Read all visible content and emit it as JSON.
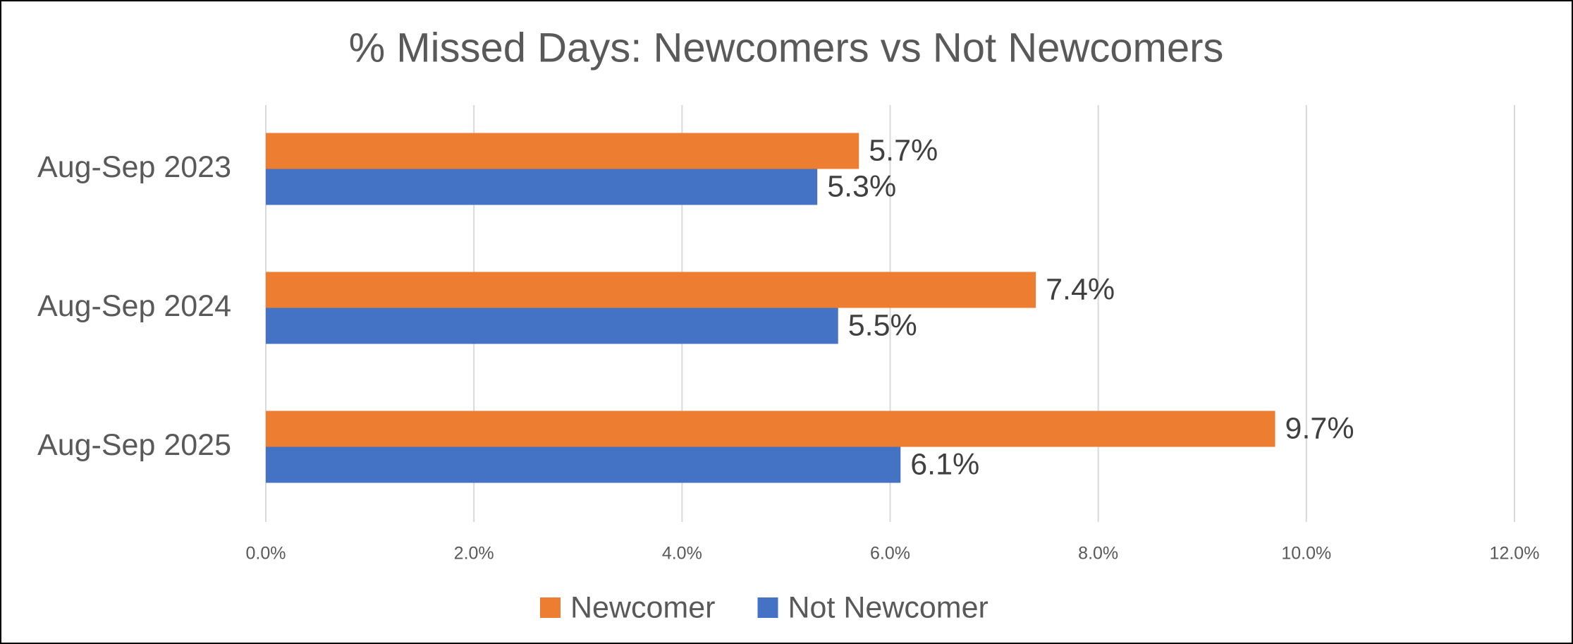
{
  "chart_data": {
    "type": "bar",
    "orientation": "horizontal",
    "title": "% Missed Days: Newcomers vs Not Newcomers",
    "categories": [
      "Aug-Sep 2023",
      "Aug-Sep 2024",
      "Aug-Sep 2025"
    ],
    "series": [
      {
        "name": "Newcomer",
        "color": "#ED7D31",
        "values": [
          5.7,
          7.4,
          9.7
        ],
        "value_labels": [
          "5.7%",
          "7.4%",
          "9.7%"
        ]
      },
      {
        "name": "Not Newcomer",
        "color": "#4472C4",
        "values": [
          5.3,
          5.5,
          6.1
        ],
        "value_labels": [
          "5.3%",
          "5.5%",
          "6.1%"
        ]
      }
    ],
    "xlim": [
      0,
      12
    ],
    "xticks": [
      {
        "value": 0,
        "label": "0.0%"
      },
      {
        "value": 2,
        "label": "2.0%"
      },
      {
        "value": 4,
        "label": "4.0%"
      },
      {
        "value": 6,
        "label": "6.0%"
      },
      {
        "value": 8,
        "label": "8.0%"
      },
      {
        "value": 10,
        "label": "10.0%"
      },
      {
        "value": 12,
        "label": "12.0%"
      }
    ],
    "grid": true,
    "legend": "bottom"
  }
}
